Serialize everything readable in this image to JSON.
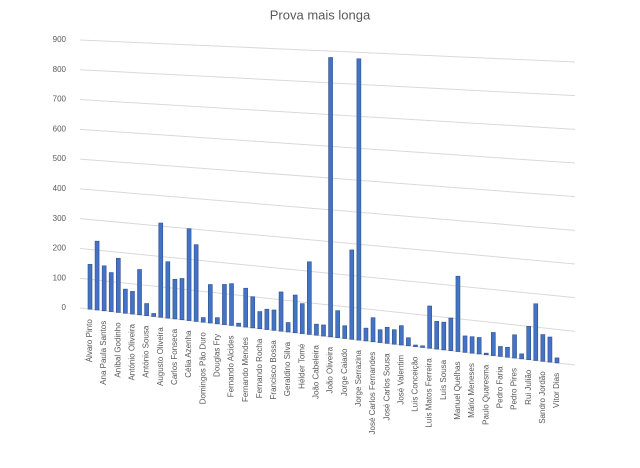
{
  "chart_data": {
    "type": "bar",
    "title": "Prova mais longa",
    "categories": [
      "Álvaro Pinto",
      null,
      "Ana Paula Santos",
      null,
      "Aníbal Godinho",
      null,
      "António Oliveira",
      null,
      "António Sousa",
      null,
      "Augusto Oliveira",
      null,
      "Carlos Fonseca",
      null,
      "Célia Azenha",
      null,
      "Domingos Pão Duro",
      null,
      "Douglas Fry",
      null,
      "Fernando Alcides",
      null,
      "Fernando Mendes",
      null,
      "Fernando Rocha",
      null,
      "Francisco Bossa",
      null,
      "Geraldino Silva",
      null,
      "Hélder Tomé",
      null,
      "João Cabeleira",
      null,
      "João Oliveira",
      null,
      "Jorge Caiado",
      null,
      "Jorge Serrazina",
      null,
      "José Carlos Fernandes",
      null,
      "José Carlos Sousa",
      null,
      "José Valentim",
      null,
      "Luís Conceição",
      null,
      "Luís Matos Ferreira",
      null,
      "Luís Sousa",
      null,
      "Manuel Quelhas",
      null,
      "Mário Meneses",
      null,
      "Paulo Quaresma",
      null,
      "Pedro Faria",
      null,
      "Pedro Pires",
      null,
      "Rui Julião",
      null,
      "Sandro Jordão",
      null,
      "Vítor Dias"
    ],
    "values": [
      150,
      230,
      150,
      130,
      180,
      80,
      75,
      150,
      40,
      10,
      310,
      185,
      130,
      135,
      300,
      250,
      15,
      125,
      20,
      130,
      135,
      10,
      125,
      100,
      55,
      65,
      65,
      125,
      30,
      120,
      95,
      230,
      35,
      35,
      880,
      85,
      40,
      280,
      880,
      40,
      75,
      40,
      50,
      45,
      60,
      25,
      5,
      5,
      130,
      85,
      85,
      100,
      230,
      50,
      50,
      50,
      5,
      70,
      30,
      30,
      70,
      15,
      100,
      170,
      80,
      75,
      15
    ],
    "color": "#4472c4",
    "ylim": [
      0,
      900
    ],
    "yticks": [
      0,
      100,
      200,
      300,
      400,
      500,
      600,
      700,
      800,
      900
    ],
    "grid": true
  }
}
